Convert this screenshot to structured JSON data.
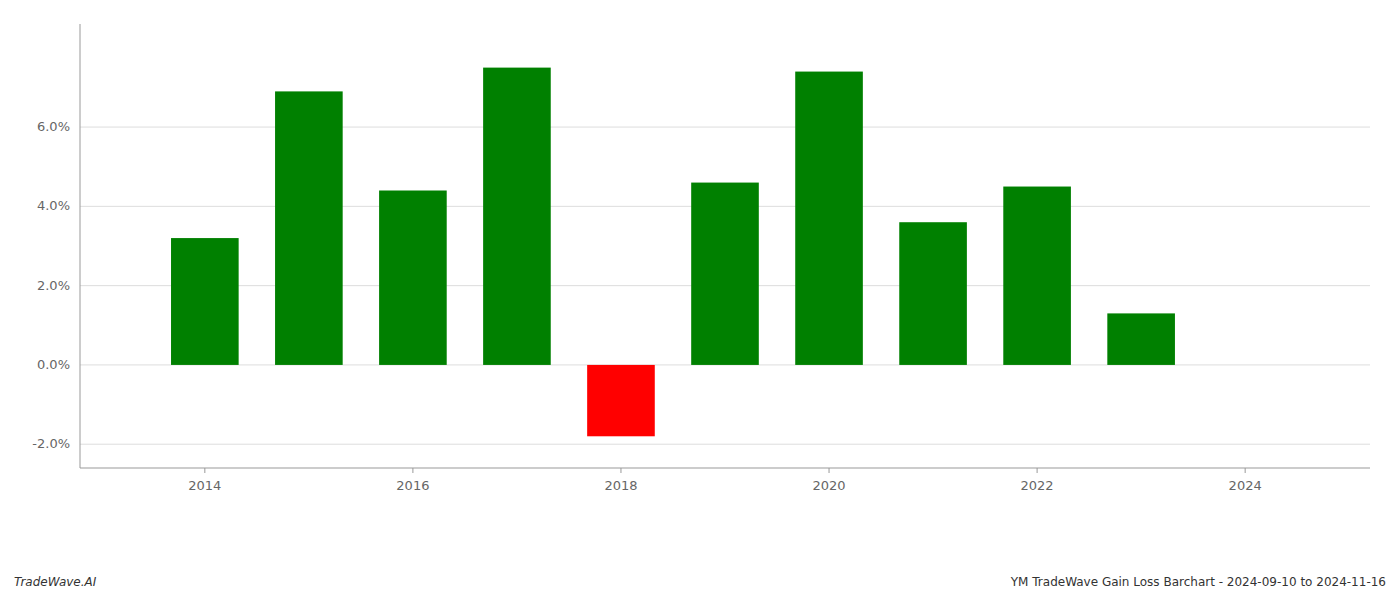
{
  "chart_data": {
    "type": "bar",
    "x": [
      2014,
      2015,
      2016,
      2017,
      2018,
      2019,
      2020,
      2021,
      2022,
      2023
    ],
    "values": [
      0.032,
      0.069,
      0.044,
      0.075,
      -0.018,
      0.046,
      0.074,
      0.036,
      0.045,
      0.013
    ],
    "colors": [
      "#008000",
      "#008000",
      "#008000",
      "#008000",
      "#ff0000",
      "#008000",
      "#008000",
      "#008000",
      "#008000",
      "#008000"
    ],
    "xlim": [
      2012.8,
      2025.2
    ],
    "xticks": [
      2014,
      2016,
      2018,
      2020,
      2022,
      2024
    ],
    "ylim": [
      -0.026,
      0.086
    ],
    "yticks": [
      {
        "value": -0.02,
        "label": "-2.0%"
      },
      {
        "value": 0.0,
        "label": "0.0%"
      },
      {
        "value": 0.02,
        "label": "2.0%"
      },
      {
        "value": 0.04,
        "label": "4.0%"
      },
      {
        "value": 0.06,
        "label": "6.0%"
      }
    ],
    "grid": true,
    "annotations": [
      "TradeWave.AI",
      "YM TradeWave Gain Loss Barchart - 2024-09-10 to 2024-11-16"
    ]
  }
}
